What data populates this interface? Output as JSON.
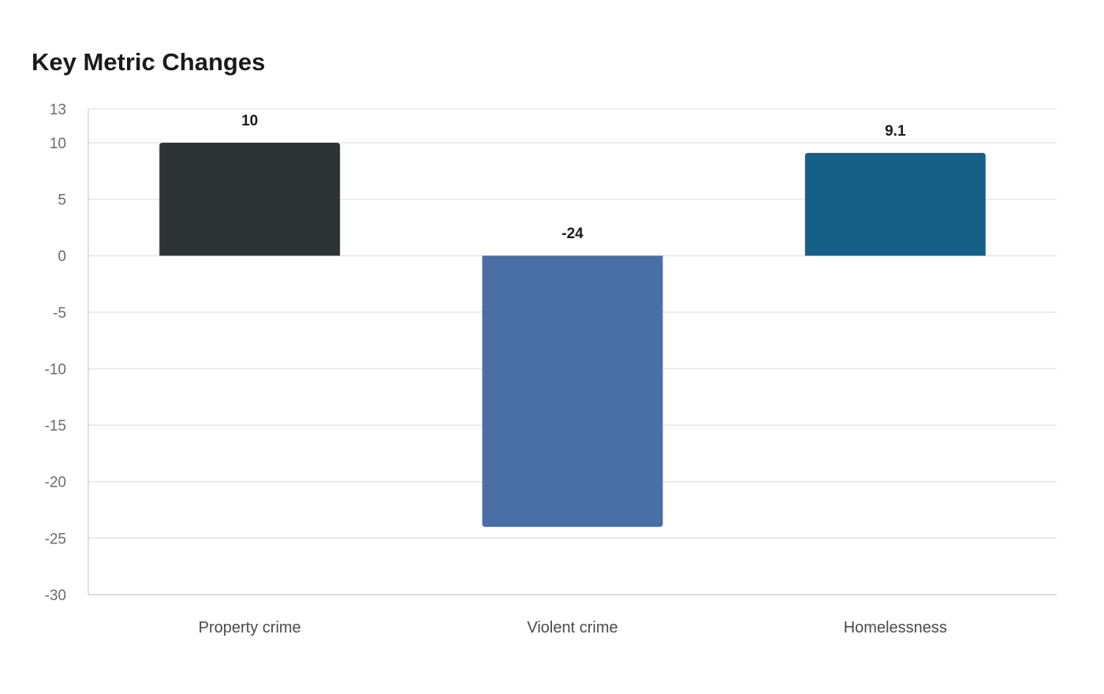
{
  "chart_data": {
    "type": "bar",
    "title": "Key Metric Changes",
    "xlabel": "",
    "ylabel": "",
    "categories": [
      "Property crime",
      "Violent crime",
      "Homelessness"
    ],
    "values": [
      10,
      -24,
      9.1
    ],
    "value_labels": [
      "10",
      "-24",
      "9.1"
    ],
    "colors": [
      "#2d3436",
      "#4a6fa5",
      "#166088"
    ],
    "ylim": [
      -30,
      13
    ],
    "yticks": [
      13,
      10,
      5,
      0,
      -5,
      -10,
      -15,
      -20,
      -25,
      -30
    ],
    "grid": true,
    "legend": "none"
  }
}
